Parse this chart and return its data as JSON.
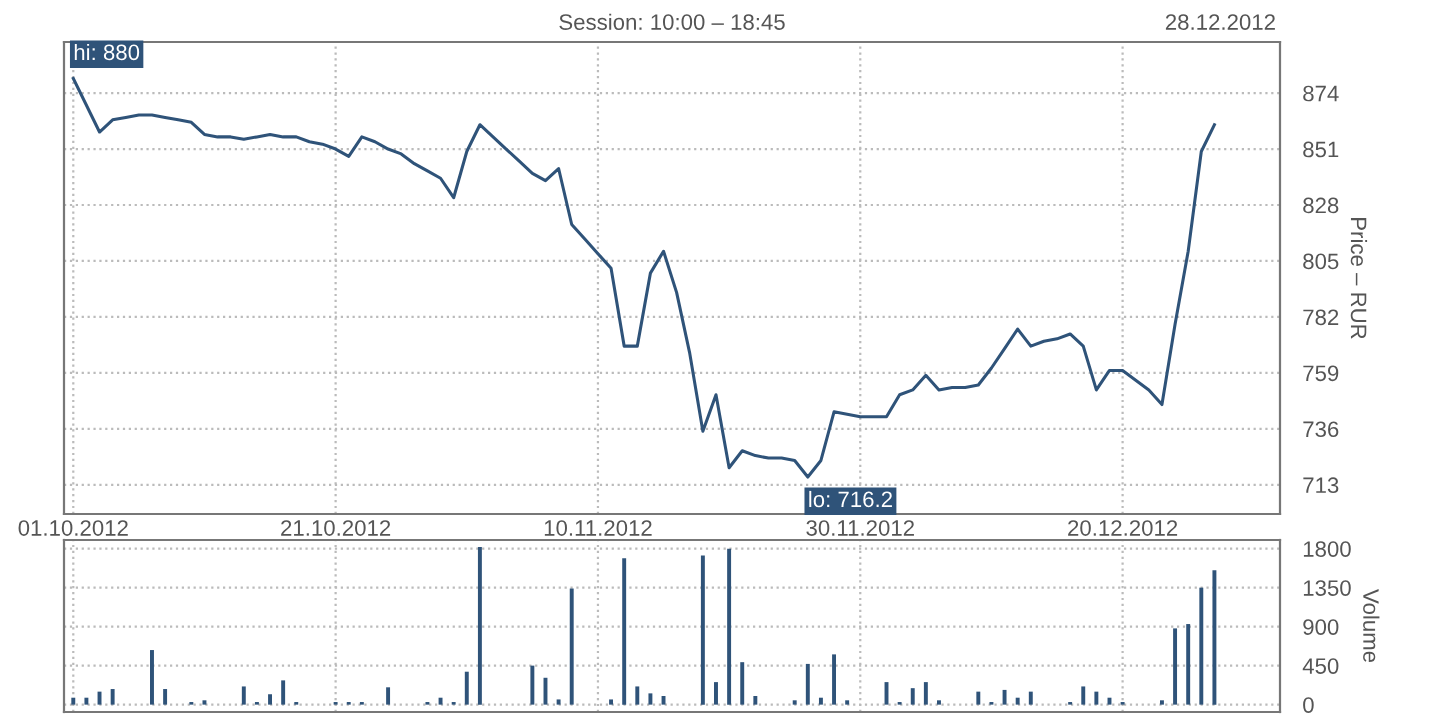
{
  "chart_data": [
    {
      "type": "line",
      "ylabel": "Price – RUR",
      "annotations": [
        "Session: 10:00 – 18:45",
        "28.12.2012",
        {
          "text": "hi: 880",
          "x": "2012-10-01",
          "y": 880
        },
        {
          "text": "lo: 716.2",
          "x": "2012-11-26",
          "y": 716.2
        }
      ],
      "series": [
        {
          "color": "#2f5379",
          "x": [
            "2012-10-01",
            "2012-10-03",
            "2012-10-04",
            "2012-10-05",
            "2012-10-06",
            "2012-10-07",
            "2012-10-08",
            "2012-10-09",
            "2012-10-10",
            "2012-10-11",
            "2012-10-12",
            "2012-10-13",
            "2012-10-14",
            "2012-10-15",
            "2012-10-16",
            "2012-10-17",
            "2012-10-18",
            "2012-10-19",
            "2012-10-20",
            "2012-10-21",
            "2012-10-22",
            "2012-10-23",
            "2012-10-24",
            "2012-10-25",
            "2012-10-26",
            "2012-10-27",
            "2012-10-28",
            "2012-10-29",
            "2012-10-30",
            "2012-10-31",
            "2012-11-01",
            "2012-11-02",
            "2012-11-03",
            "2012-11-04",
            "2012-11-05",
            "2012-11-06",
            "2012-11-07",
            "2012-11-08",
            "2012-11-09",
            "2012-11-10",
            "2012-11-11",
            "2012-11-12",
            "2012-11-13",
            "2012-11-14",
            "2012-11-15",
            "2012-11-16",
            "2012-11-17",
            "2012-11-18",
            "2012-11-19",
            "2012-11-20",
            "2012-11-21",
            "2012-11-22",
            "2012-11-23",
            "2012-11-24",
            "2012-11-25",
            "2012-11-26",
            "2012-11-27",
            "2012-11-28",
            "2012-11-29",
            "2012-11-30",
            "2012-12-01",
            "2012-12-02",
            "2012-12-03",
            "2012-12-04",
            "2012-12-05",
            "2012-12-06",
            "2012-12-07",
            "2012-12-08",
            "2012-12-09",
            "2012-12-10",
            "2012-12-11",
            "2012-12-12",
            "2012-12-13",
            "2012-12-14",
            "2012-12-15",
            "2012-12-16",
            "2012-12-17",
            "2012-12-18",
            "2012-12-19",
            "2012-12-20",
            "2012-12-21",
            "2012-12-22",
            "2012-12-23",
            "2012-12-24",
            "2012-12-25",
            "2012-12-26",
            "2012-12-27"
          ],
          "values": [
            880,
            858,
            863,
            864,
            865,
            865,
            864,
            863,
            862,
            857,
            856,
            856,
            855,
            856,
            857,
            856,
            856,
            854,
            853,
            851,
            848,
            856,
            854,
            851,
            849,
            845,
            842,
            839,
            831,
            850,
            861,
            856,
            851,
            846,
            841,
            838,
            843,
            820,
            814,
            808,
            802,
            770,
            770,
            800,
            809,
            792,
            767,
            735,
            750,
            720,
            727,
            725,
            724,
            724,
            723,
            716.2,
            723,
            743,
            742,
            741,
            741,
            741,
            750,
            752,
            758,
            752,
            753,
            753,
            754,
            761,
            769,
            777,
            770,
            772,
            773,
            775,
            770,
            752,
            760,
            760,
            756,
            752,
            746,
            779,
            809,
            850,
            861
          ]
        }
      ],
      "xlim": [
        "2012-09-30T07:00",
        "2013-01-01"
      ],
      "xticks": [
        {
          "value": "2012-10-01",
          "label": "01.10.2012"
        },
        {
          "value": "2012-10-21",
          "label": "21.10.2012"
        },
        {
          "value": "2012-11-10",
          "label": "10.11.2012"
        },
        {
          "value": "2012-11-30",
          "label": "30.11.2012"
        },
        {
          "value": "2012-12-20",
          "label": "20.12.2012"
        }
      ],
      "ylim": [
        701,
        895
      ],
      "yticks": [
        713,
        736,
        759,
        782,
        805,
        828,
        851,
        874
      ],
      "grid": true,
      "line_style": "solid"
    },
    {
      "type": "bar",
      "ylabel": "Volume",
      "tick_labels": "y",
      "series": [
        {
          "color": "#2f5379",
          "x": [
            "2012-10-01",
            "2012-10-02",
            "2012-10-03",
            "2012-10-04",
            "2012-10-07",
            "2012-10-08",
            "2012-10-10",
            "2012-10-11",
            "2012-10-14",
            "2012-10-15",
            "2012-10-16",
            "2012-10-17",
            "2012-10-18",
            "2012-10-21",
            "2012-10-22",
            "2012-10-23",
            "2012-10-25",
            "2012-10-28",
            "2012-10-29",
            "2012-10-30",
            "2012-10-31",
            "2012-11-01",
            "2012-11-05",
            "2012-11-06",
            "2012-11-07",
            "2012-11-08",
            "2012-11-11",
            "2012-11-12",
            "2012-11-13",
            "2012-11-14",
            "2012-11-15",
            "2012-11-18",
            "2012-11-19",
            "2012-11-20",
            "2012-11-21",
            "2012-11-22",
            "2012-11-25",
            "2012-11-26",
            "2012-11-27",
            "2012-11-28",
            "2012-11-29",
            "2012-12-02",
            "2012-12-03",
            "2012-12-04",
            "2012-12-05",
            "2012-12-06",
            "2012-12-09",
            "2012-12-10",
            "2012-12-11",
            "2012-12-12",
            "2012-12-13",
            "2012-12-16",
            "2012-12-17",
            "2012-12-18",
            "2012-12-19",
            "2012-12-20",
            "2012-12-23",
            "2012-12-24",
            "2012-12-25",
            "2012-12-26",
            "2012-12-27"
          ],
          "values": [
            80,
            80,
            150,
            180,
            630,
            180,
            30,
            50,
            210,
            30,
            120,
            280,
            30,
            30,
            30,
            30,
            200,
            30,
            80,
            30,
            380,
            1820,
            450,
            310,
            60,
            1340,
            60,
            1690,
            210,
            130,
            100,
            1720,
            260,
            1800,
            490,
            100,
            50,
            470,
            80,
            580,
            50,
            260,
            30,
            190,
            260,
            50,
            150,
            30,
            170,
            80,
            150,
            30,
            210,
            150,
            80,
            30,
            50,
            880,
            930,
            1350,
            1550
          ]
        }
      ],
      "xlim": [
        "2012-09-30T07:00",
        "2013-01-01"
      ],
      "xticks": [
        {
          "value": "2012-10-01",
          "label": null
        },
        {
          "value": "2012-10-21",
          "label": null
        },
        {
          "value": "2012-11-10",
          "label": null
        },
        {
          "value": "2012-11-30",
          "label": null
        },
        {
          "value": "2012-12-20",
          "label": null
        }
      ],
      "ylim": [
        -85,
        1900
      ],
      "yticks": [
        0,
        450,
        900,
        1350,
        1800
      ],
      "grid": true
    }
  ]
}
